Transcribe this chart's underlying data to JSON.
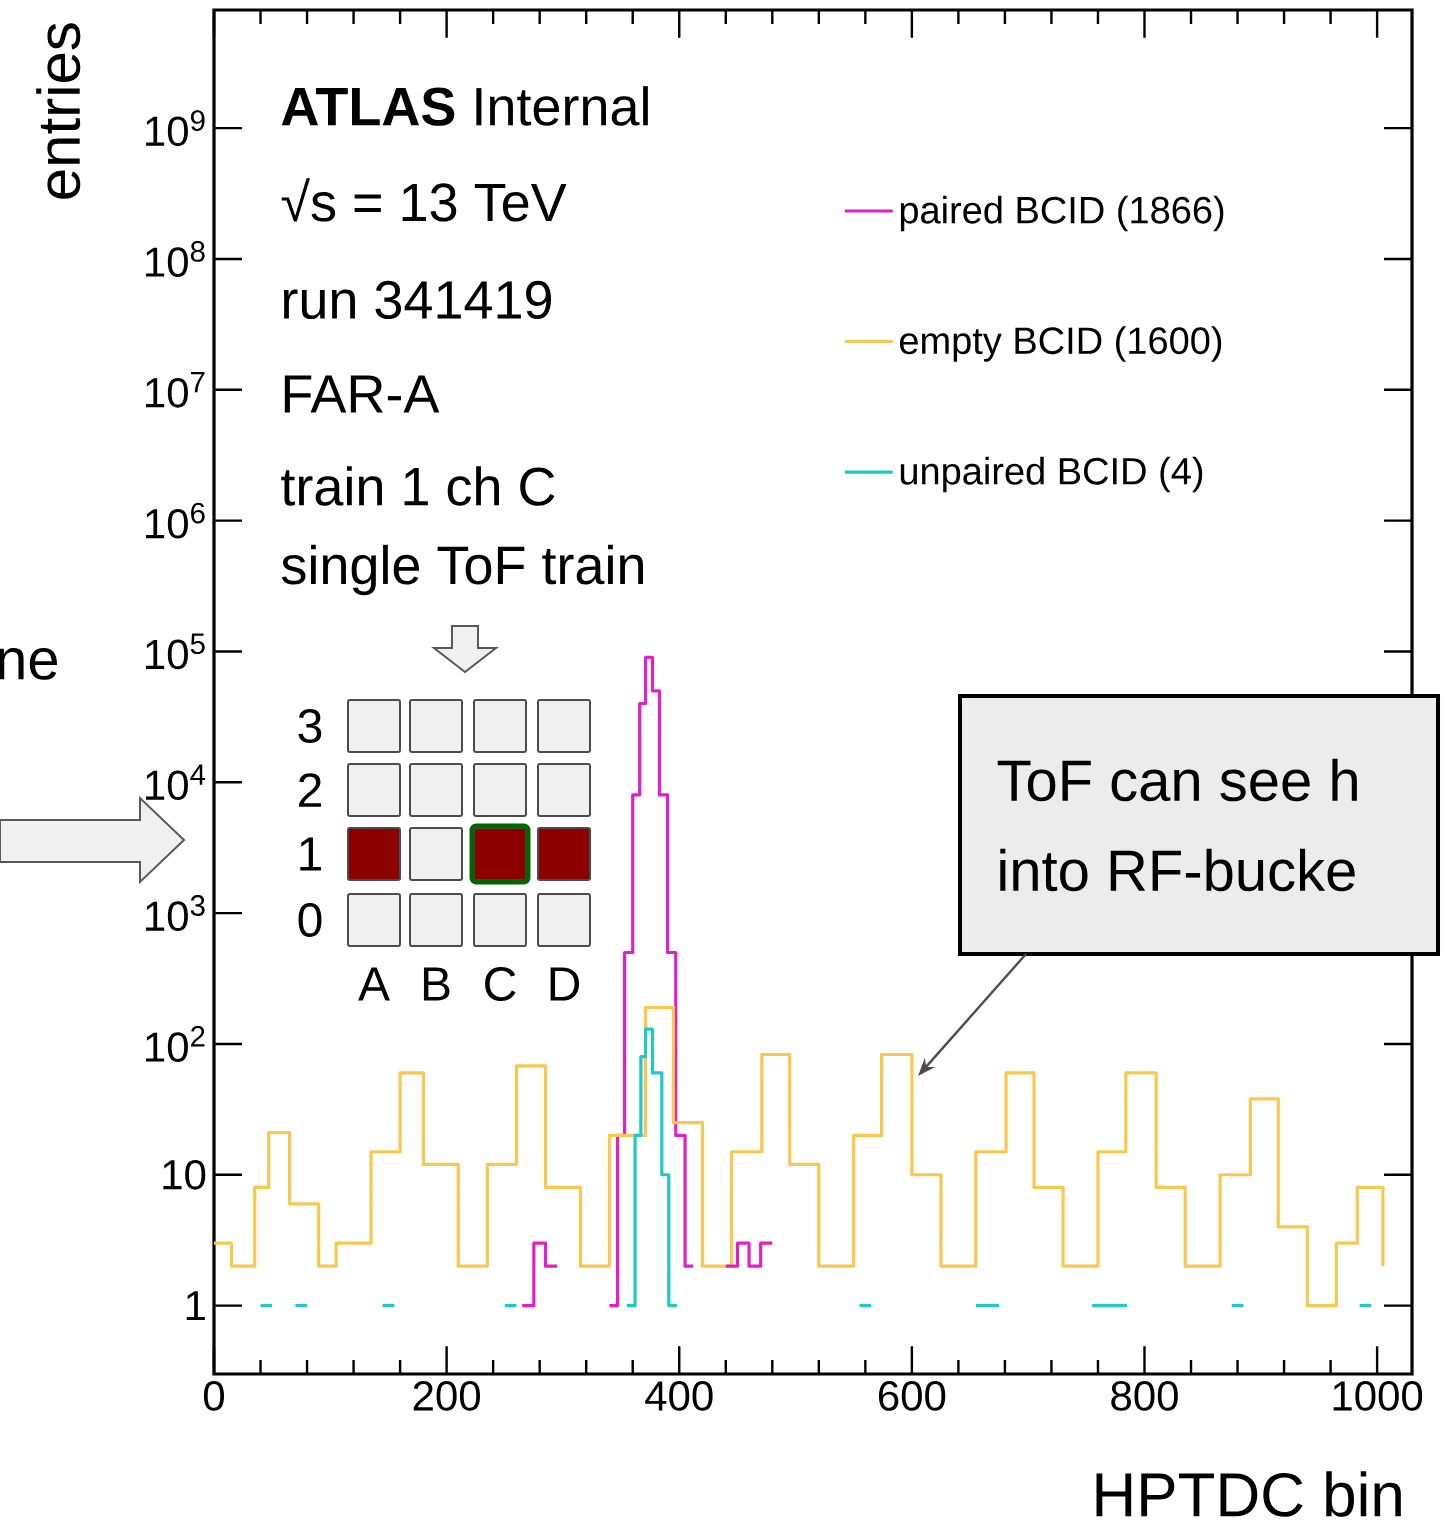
{
  "chart_data": {
    "type": "step",
    "xlabel": "HPTDC bin",
    "ylabel": "entries",
    "log": "y",
    "xlim": [
      0,
      1030
    ],
    "ylim": [
      0.3,
      8000000000
    ],
    "xticks": [
      0,
      200,
      400,
      600,
      800,
      1000
    ],
    "yticks": [
      1,
      10,
      {
        "value": 100,
        "label": "10$^{2}$"
      },
      {
        "value": 1000,
        "label": "10$^{3}$"
      },
      {
        "value": 10000,
        "label": "10$^{4}$"
      },
      {
        "value": 100000,
        "label": "10$^{5}$"
      },
      {
        "value": 1000000,
        "label": "10$^{6}$"
      },
      {
        "value": 10000000,
        "label": "10$^{7}$"
      },
      {
        "value": 100000000,
        "label": "10$^{8}$"
      },
      {
        "value": 1000000000,
        "label": "10$^{9}$"
      }
    ],
    "legend": "top right",
    "series": [
      {
        "name": "paired BCID (1866)",
        "color": "#e020c8",
        "x": [
          340,
          347,
          353,
          360,
          366,
          371,
          377,
          383,
          390,
          397,
          405,
          412
        ],
        "values": [
          1,
          20,
          500,
          8000,
          40000,
          90000,
          50000,
          8000,
          500,
          20,
          2,
          2
        ]
      },
      {
        "name": "empty BCID (1600)",
        "color": "#f8c850",
        "x": [
          0,
          15,
          35,
          47,
          65,
          90,
          105,
          135,
          160,
          180,
          210,
          235,
          260,
          285,
          315,
          340,
          371,
          395,
          420,
          445,
          471,
          495,
          520,
          550,
          574,
          600,
          625,
          655,
          681,
          705,
          730,
          760,
          784,
          810,
          835,
          865,
          891,
          915,
          940,
          965,
          983,
          1005
        ],
        "values": [
          3,
          2,
          8,
          21,
          6,
          2,
          3,
          15,
          60,
          12,
          2,
          12,
          68,
          8,
          2,
          20,
          190,
          25,
          2,
          15,
          83,
          12,
          2,
          20,
          83,
          10,
          2,
          15,
          60,
          8,
          2,
          15,
          60,
          8,
          2,
          10,
          38,
          4,
          1,
          3,
          8,
          2
        ]
      },
      {
        "name": "unpaired BCID (4)",
        "color": "#20c8c8",
        "x": [
          355,
          362,
          367,
          371,
          377,
          385,
          391,
          398
        ],
        "values": [
          1,
          20,
          80,
          130,
          60,
          10,
          1,
          1
        ]
      },
      {
        "color": "#e020c8",
        "x": [
          265,
          275,
          285,
          295
        ],
        "values": [
          1,
          3,
          2,
          2
        ]
      },
      {
        "color": "#e020c8",
        "x": [
          440,
          450,
          460,
          470,
          480
        ],
        "values": [
          2,
          3,
          2,
          3,
          3
        ]
      },
      {
        "color": "#20c8c8",
        "x": [
          40,
          50
        ],
        "values": [
          1,
          1
        ]
      },
      {
        "color": "#20c8c8",
        "x": [
          70,
          80
        ],
        "values": [
          1,
          1
        ]
      },
      {
        "color": "#20c8c8",
        "x": [
          145,
          155
        ],
        "values": [
          1,
          1
        ]
      },
      {
        "color": "#20c8c8",
        "x": [
          250,
          260
        ],
        "values": [
          1,
          1
        ]
      },
      {
        "color": "#20c8c8",
        "x": [
          555,
          565
        ],
        "values": [
          1,
          1
        ]
      },
      {
        "color": "#20c8c8",
        "x": [
          655,
          675
        ],
        "values": [
          1,
          1
        ]
      },
      {
        "color": "#20c8c8",
        "x": [
          755,
          785
        ],
        "values": [
          1,
          1
        ]
      },
      {
        "color": "#20c8c8",
        "x": [
          875,
          885
        ],
        "values": [
          1,
          1
        ]
      },
      {
        "color": "#20c8c8",
        "x": [
          985,
          995
        ],
        "values": [
          1,
          1
        ]
      }
    ],
    "annotations": [
      "**ATLAS** Internal",
      "√s = 13 TeV",
      "run 341419",
      "FAR-A",
      "train 1 ch C",
      "single ToF train",
      "3",
      "2",
      "1",
      "0",
      "A",
      "B",
      "C",
      "D",
      "ToF can see h",
      "into RF-bucke",
      "ne"
    ]
  }
}
